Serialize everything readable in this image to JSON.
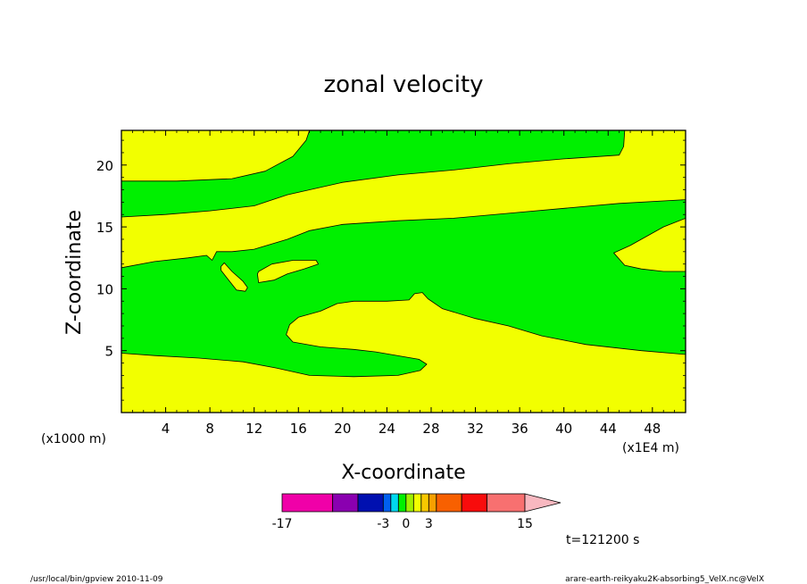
{
  "chart_data": {
    "type": "contour",
    "title": "zonal velocity",
    "xlabel": "X-coordinate",
    "ylabel": "Z-coordinate",
    "x_unit": "(x1000 m)",
    "x_scale_note": "(x1E4 m)",
    "xlim": [
      0,
      51
    ],
    "ylim": [
      0,
      22.8
    ],
    "x_ticks": [
      4,
      8,
      12,
      16,
      20,
      24,
      28,
      32,
      36,
      40,
      44,
      48
    ],
    "y_ticks": [
      5,
      10,
      15,
      20
    ],
    "x_tick_labels": [
      "4",
      "8",
      "12",
      "16",
      "20",
      "24",
      "28",
      "32",
      "36",
      "40",
      "44",
      "48"
    ],
    "y_tick_labels": [
      "5",
      "10",
      "15",
      "20"
    ],
    "background_fill": "#f2ff00",
    "contour_fill": "#00f000",
    "regions": [
      {
        "fill": "#00f000",
        "points": [
          [
            0,
            18.7
          ],
          [
            5,
            18.7
          ],
          [
            10,
            18.9
          ],
          [
            13,
            19.5
          ],
          [
            15.5,
            20.7
          ],
          [
            16.7,
            22
          ],
          [
            17,
            22.8
          ],
          [
            45.5,
            22.8
          ],
          [
            45.4,
            21.5
          ],
          [
            45,
            20.8
          ],
          [
            40,
            20.5
          ],
          [
            35,
            20.1
          ],
          [
            30,
            19.6
          ],
          [
            25,
            19.2
          ],
          [
            20,
            18.6
          ],
          [
            15,
            17.6
          ],
          [
            12,
            16.7
          ],
          [
            8,
            16.3
          ],
          [
            4,
            16
          ],
          [
            0,
            15.8
          ]
        ]
      },
      {
        "fill": "#00f000",
        "points": [
          [
            0,
            11.7
          ],
          [
            3,
            12.2
          ],
          [
            6,
            12.5
          ],
          [
            7.7,
            12.7
          ],
          [
            8.2,
            12.3
          ],
          [
            8.6,
            13
          ],
          [
            10,
            13
          ],
          [
            12,
            13.2
          ],
          [
            15,
            14
          ],
          [
            17,
            14.7
          ],
          [
            20,
            15.2
          ],
          [
            25,
            15.5
          ],
          [
            30,
            15.7
          ],
          [
            35,
            16.1
          ],
          [
            40,
            16.5
          ],
          [
            45,
            16.9
          ],
          [
            51,
            17.2
          ],
          [
            51,
            15.7
          ],
          [
            49,
            15
          ],
          [
            46,
            13.5
          ],
          [
            44.5,
            12.9
          ],
          [
            45.5,
            11.9
          ],
          [
            47,
            11.6
          ],
          [
            49,
            11.4
          ],
          [
            51,
            11.4
          ],
          [
            51,
            4.7
          ],
          [
            47,
            5
          ],
          [
            42,
            5.5
          ],
          [
            38,
            6.2
          ],
          [
            35,
            7
          ],
          [
            32,
            7.6
          ],
          [
            29,
            8.4
          ],
          [
            27.7,
            9.2
          ],
          [
            27.2,
            9.7
          ],
          [
            26.5,
            9.6
          ],
          [
            26,
            9.1
          ],
          [
            24,
            9
          ],
          [
            21,
            9
          ],
          [
            19.5,
            8.8
          ],
          [
            18,
            8.2
          ],
          [
            16,
            7.7
          ],
          [
            15.2,
            7.1
          ],
          [
            14.9,
            6.3
          ],
          [
            15.5,
            5.7
          ],
          [
            18,
            5.3
          ],
          [
            21,
            5.1
          ],
          [
            23,
            4.9
          ],
          [
            25.6,
            4.5
          ],
          [
            26.9,
            4.3
          ],
          [
            27.6,
            3.9
          ],
          [
            27,
            3.4
          ],
          [
            25,
            3
          ],
          [
            21,
            2.9
          ],
          [
            17,
            3
          ],
          [
            14,
            3.6
          ],
          [
            11,
            4.1
          ],
          [
            7,
            4.4
          ],
          [
            3,
            4.6
          ],
          [
            0,
            4.8
          ]
        ]
      }
    ],
    "islands": [
      {
        "fill": "#f2ff00",
        "points": [
          [
            12.4,
            11.4
          ],
          [
            13.6,
            12
          ],
          [
            15.5,
            12.3
          ],
          [
            17.6,
            12.3
          ],
          [
            17.8,
            12
          ],
          [
            16.5,
            11.6
          ],
          [
            15,
            11.2
          ],
          [
            13.8,
            10.7
          ],
          [
            12.4,
            10.5
          ],
          [
            12.3,
            11.2
          ]
        ]
      },
      {
        "fill": "#f2ff00",
        "points": [
          [
            9,
            11.8
          ],
          [
            9.3,
            12.1
          ],
          [
            10,
            11.4
          ],
          [
            11,
            10.6
          ],
          [
            11.4,
            10.1
          ],
          [
            11.2,
            9.8
          ],
          [
            10.4,
            9.9
          ],
          [
            9.6,
            10.8
          ],
          [
            9,
            11.5
          ]
        ]
      }
    ],
    "colorbar": {
      "colors": [
        "#f000a8",
        "#8a00b0",
        "#0010b0",
        "#0060f0",
        "#00d8f0",
        "#00f000",
        "#a0f000",
        "#f2ff00",
        "#f8c800",
        "#f8a000",
        "#f86000",
        "#f80c0c",
        "#f87070",
        "#f8b8c0"
      ],
      "widths": [
        4,
        2,
        2,
        0.6,
        0.6,
        0.6,
        0.6,
        0.6,
        0.6,
        0.6,
        2,
        2,
        3,
        2
      ],
      "tick_labels": [
        "-17",
        "-3",
        "0",
        "3",
        "15"
      ],
      "tick_values": [
        -17,
        -3,
        0,
        3,
        15
      ]
    }
  },
  "annotations": {
    "time_label": "t=121200 s",
    "footer_left": "/usr/local/bin/gpview  2010-11-09",
    "footer_right": "arare-earth-reikyaku2K-absorbing5_VelX.nc@VelX"
  }
}
